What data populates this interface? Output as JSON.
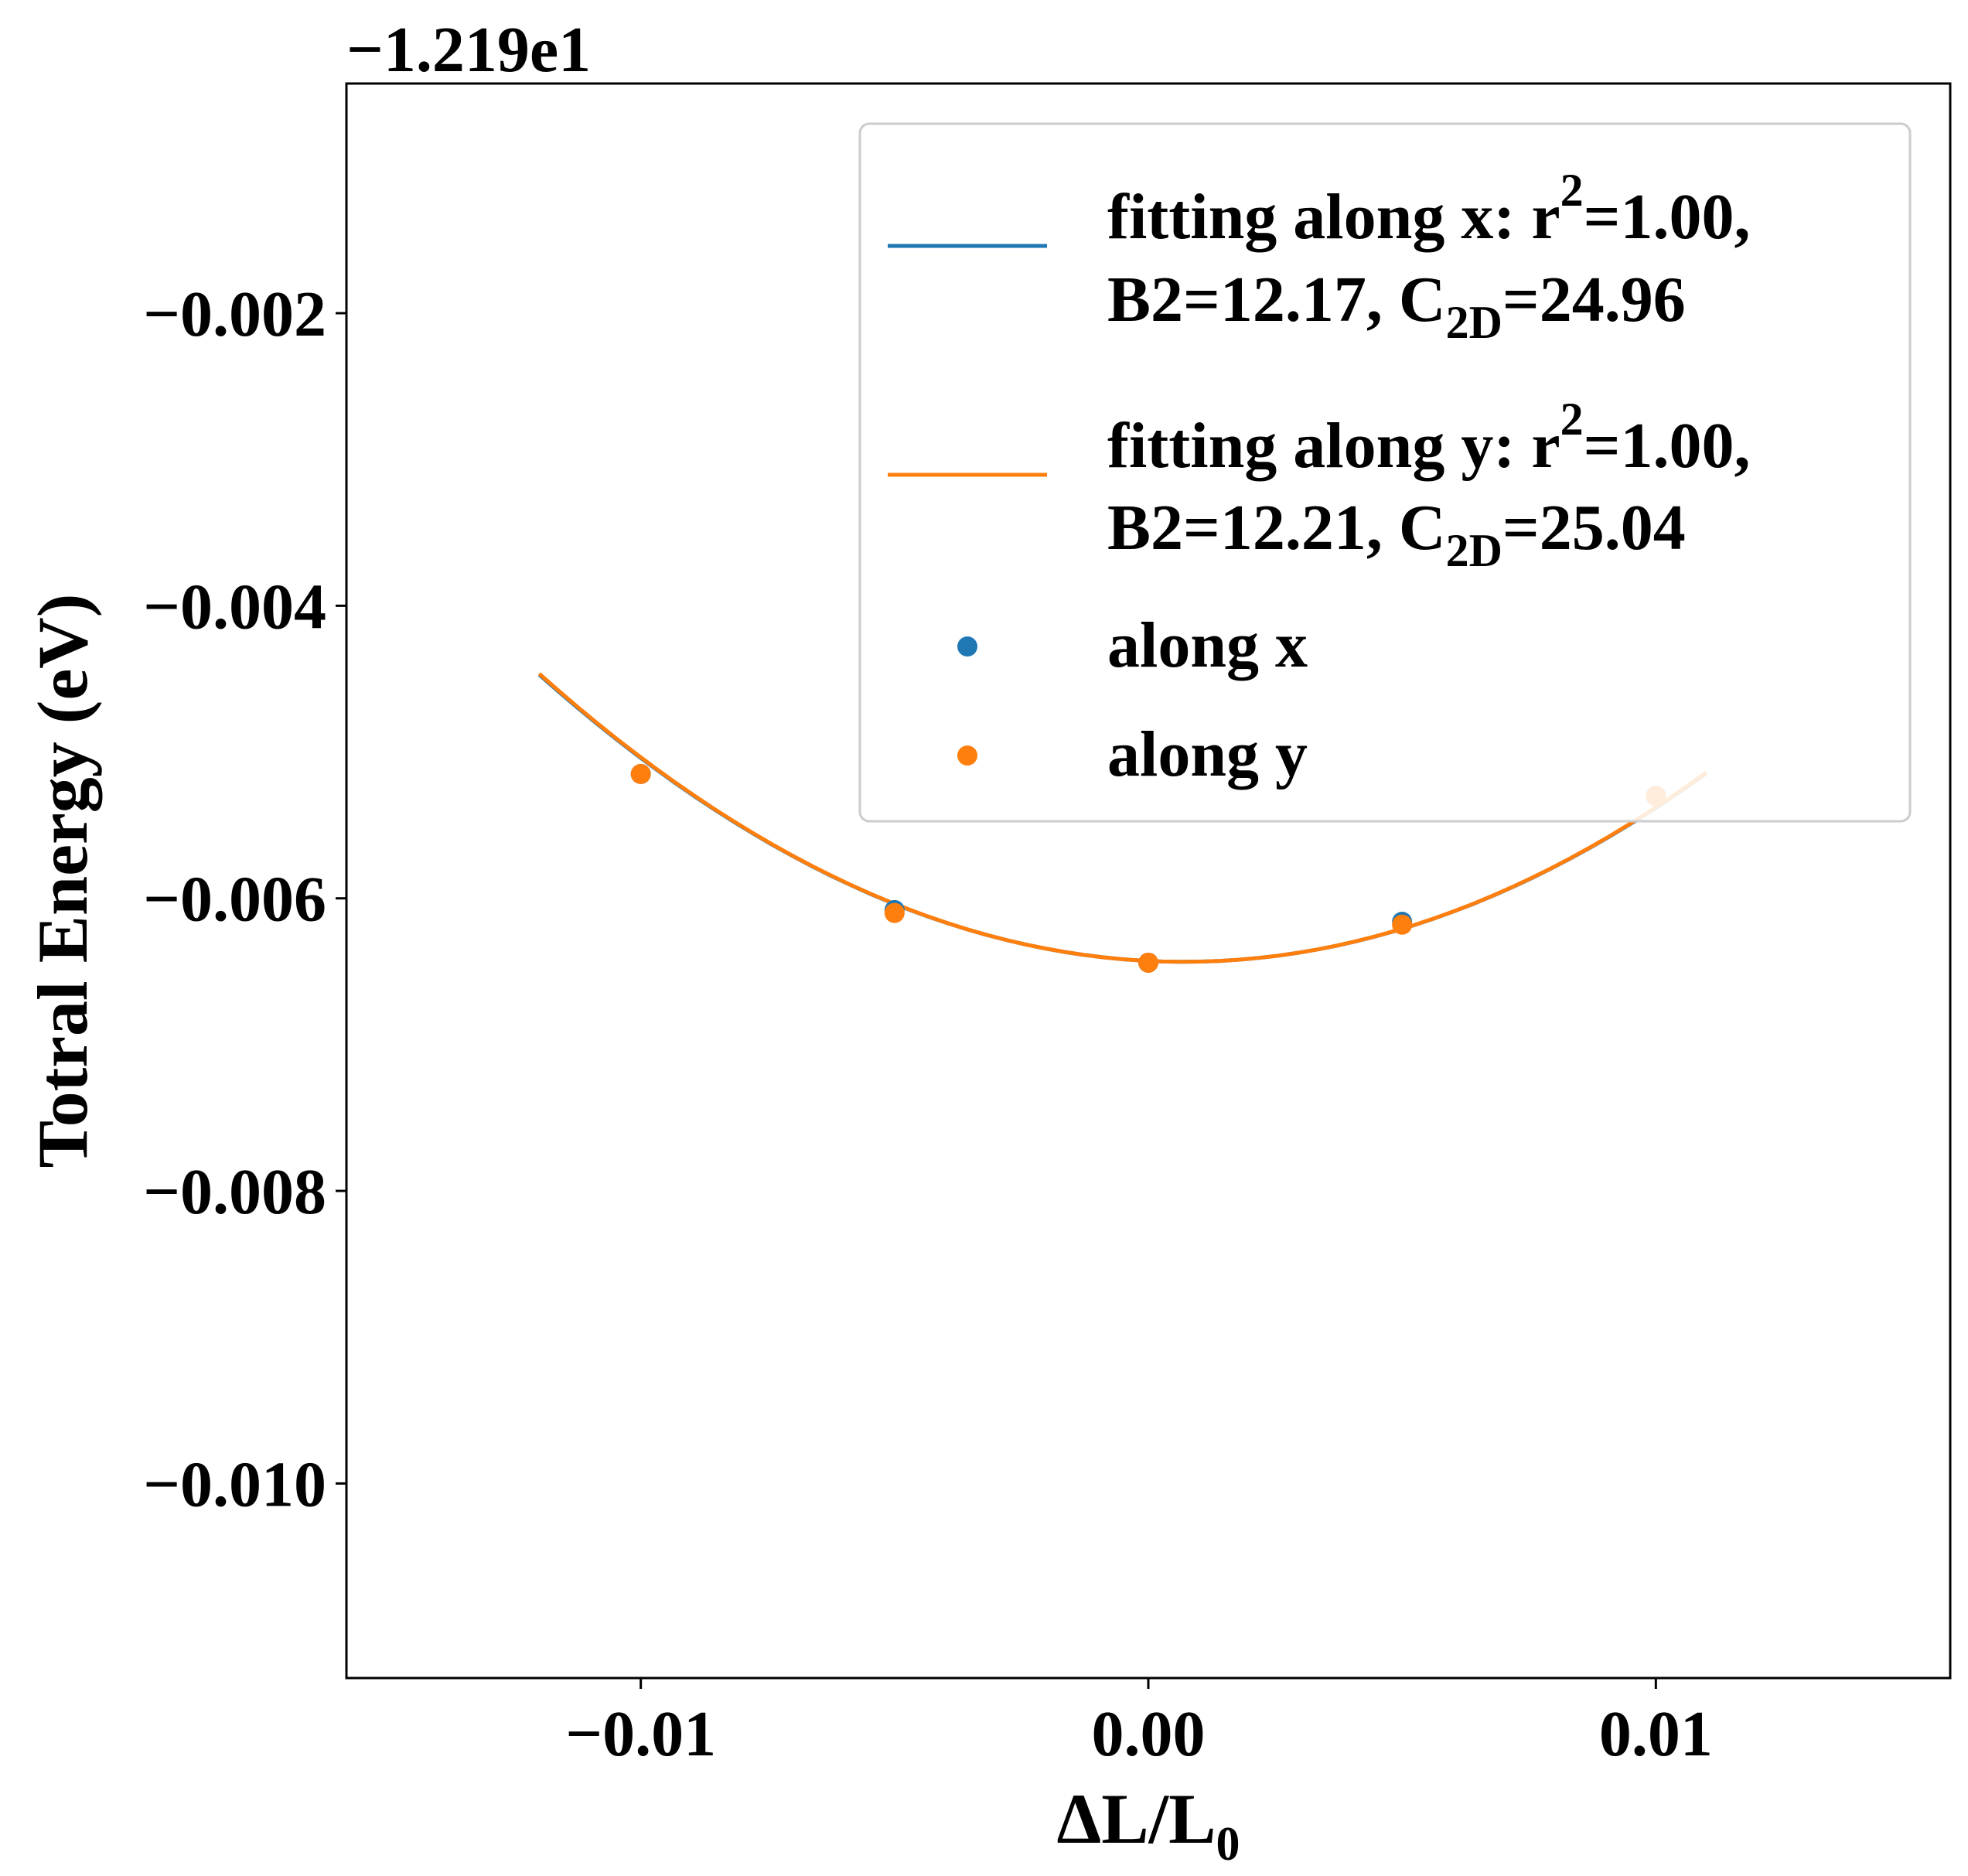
{
  "chart_data": {
    "type": "scatter",
    "offset_text": "−1.219e1",
    "xlabel": "ΔL/L",
    "xlabel_sub": "0",
    "ylabel": "Totral Energy (eV)",
    "xlim": [
      -0.0158,
      0.0158
    ],
    "ylim": [
      -0.01133,
      -0.00043
    ],
    "x_ticks": [
      -0.01,
      0.0,
      0.01
    ],
    "x_tick_labels": [
      "−0.01",
      "0.00",
      "0.01"
    ],
    "y_ticks": [
      -0.002,
      -0.004,
      -0.006,
      -0.008,
      -0.01
    ],
    "y_tick_labels": [
      "−0.002",
      "−0.004",
      "−0.006",
      "−0.008",
      "−0.010"
    ],
    "grid": false,
    "legend_position": "upper right",
    "fit_curves": [
      {
        "name_line1_prefix": "fitting along x: r",
        "name_line1_sup": "2",
        "name_line1_suffix": "=1.00,",
        "name_line2_prefix": "B2=12.17, C",
        "name_line2_sub": "2D",
        "name_line2_suffix": "=24.96",
        "color": "#1f77b4",
        "x_range": [
          -0.012,
          0.011
        ],
        "x0": 0.0007,
        "y0": -0.006434,
        "a": 12.17
      },
      {
        "name_line1_prefix": "fitting along y: r",
        "name_line1_sup": "2",
        "name_line1_suffix": "=1.00,",
        "name_line2_prefix": "B2=12.21, C",
        "name_line2_sub": "2D",
        "name_line2_suffix": "=25.04",
        "color": "#ff7f0e",
        "x_range": [
          -0.012,
          0.011
        ],
        "x0": 0.0007,
        "y0": -0.006434,
        "a": 12.21
      }
    ],
    "series": [
      {
        "name": "along x",
        "color": "#1f77b4",
        "x": [
          -0.01,
          -0.005,
          0.0,
          0.005,
          0.01
        ],
        "y": [
          -0.00515,
          -0.00608,
          -0.00644,
          -0.00616,
          -0.0053
        ]
      },
      {
        "name": "along y",
        "color": "#ff7f0e",
        "x": [
          -0.01,
          -0.005,
          0.0,
          0.005,
          0.01
        ],
        "y": [
          -0.00515,
          -0.0061,
          -0.00644,
          -0.00618,
          -0.0053
        ]
      }
    ]
  }
}
